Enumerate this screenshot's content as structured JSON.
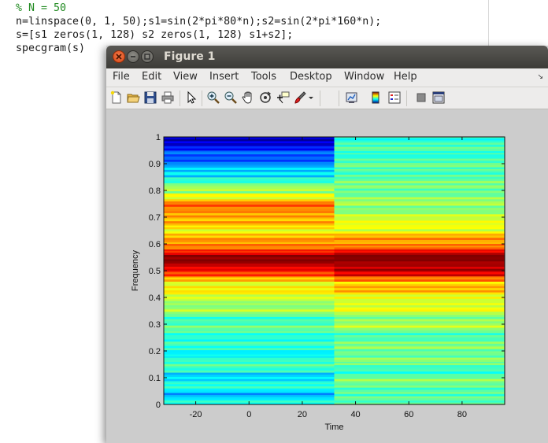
{
  "editor": {
    "lines": [
      "% N = 50",
      "n=linspace(0, 1, 50);s1=sin(2*pi*80*n);s2=sin(2*pi*160*n);",
      "s=[s1 zeros(1, 128) s2 zeros(1, 128) s1+s2];",
      "specgram(s)"
    ],
    "comment_color": "#228b22"
  },
  "window": {
    "title": "Figure 1",
    "controls": [
      "close-icon",
      "minimize-icon",
      "maximize-icon"
    ]
  },
  "menu": {
    "items": [
      "File",
      "Edit",
      "View",
      "Insert",
      "Tools",
      "Desktop",
      "Window",
      "Help"
    ],
    "overflow_icon": "double-chevron-icon"
  },
  "toolbar": {
    "icons": [
      "new-figure-icon",
      "open-file-icon",
      "save-icon",
      "print-icon",
      "edit-plot-arrow-icon",
      "zoom-in-icon",
      "zoom-out-icon",
      "pan-hand-icon",
      "rotate-3d-icon",
      "data-cursor-icon",
      "brush-icon",
      "brush-dropdown-icon",
      "link-plot-icon",
      "colorbar-icon",
      "legend-icon",
      "hide-plot-tools-icon",
      "show-plot-tools-icon"
    ]
  },
  "chart_data": {
    "type": "heatmap",
    "title": "",
    "xlabel": "Time",
    "ylabel": "Frequency",
    "xlim": [
      -32,
      96
    ],
    "ylim": [
      0,
      1
    ],
    "xticks": [
      -20,
      0,
      20,
      40,
      60,
      80
    ],
    "yticks": [
      0,
      0.1,
      0.2,
      0.3,
      0.4,
      0.5,
      0.6,
      0.7,
      0.8,
      0.9,
      1
    ],
    "grid": false,
    "colormap": "jet",
    "time_segments": [
      {
        "x_start": -32,
        "x_end": 32
      },
      {
        "x_start": 32,
        "x_end": 96
      }
    ],
    "frequency_profiles": [
      {
        "segment": 0,
        "bands": [
          {
            "f0": 0.0,
            "f1": 0.02,
            "level": 0.38
          },
          {
            "f0": 0.02,
            "f1": 0.045,
            "level": 0.3
          },
          {
            "f0": 0.045,
            "f1": 0.08,
            "level": 0.4
          },
          {
            "f0": 0.08,
            "f1": 0.12,
            "level": 0.36
          },
          {
            "f0": 0.12,
            "f1": 0.18,
            "level": 0.42
          },
          {
            "f0": 0.18,
            "f1": 0.22,
            "level": 0.38
          },
          {
            "f0": 0.22,
            "f1": 0.28,
            "level": 0.43
          },
          {
            "f0": 0.28,
            "f1": 0.34,
            "level": 0.46
          },
          {
            "f0": 0.34,
            "f1": 0.38,
            "level": 0.52
          },
          {
            "f0": 0.38,
            "f1": 0.42,
            "level": 0.58
          },
          {
            "f0": 0.42,
            "f1": 0.46,
            "level": 0.63
          },
          {
            "f0": 0.46,
            "f1": 0.48,
            "level": 0.7
          },
          {
            "f0": 0.48,
            "f1": 0.5,
            "level": 0.8
          },
          {
            "f0": 0.5,
            "f1": 0.52,
            "level": 0.92
          },
          {
            "f0": 0.52,
            "f1": 0.56,
            "level": 0.98
          },
          {
            "f0": 0.56,
            "f1": 0.58,
            "level": 0.88
          },
          {
            "f0": 0.58,
            "f1": 0.6,
            "level": 0.78
          },
          {
            "f0": 0.6,
            "f1": 0.64,
            "level": 0.7
          },
          {
            "f0": 0.64,
            "f1": 0.67,
            "level": 0.64
          },
          {
            "f0": 0.67,
            "f1": 0.7,
            "level": 0.68
          },
          {
            "f0": 0.7,
            "f1": 0.76,
            "level": 0.75
          },
          {
            "f0": 0.76,
            "f1": 0.79,
            "level": 0.64
          },
          {
            "f0": 0.79,
            "f1": 0.82,
            "level": 0.52
          },
          {
            "f0": 0.82,
            "f1": 0.85,
            "level": 0.44
          },
          {
            "f0": 0.85,
            "f1": 0.87,
            "level": 0.36
          },
          {
            "f0": 0.87,
            "f1": 0.9,
            "level": 0.3
          },
          {
            "f0": 0.9,
            "f1": 0.92,
            "level": 0.24
          },
          {
            "f0": 0.92,
            "f1": 0.95,
            "level": 0.2
          },
          {
            "f0": 0.95,
            "f1": 0.97,
            "level": 0.14
          },
          {
            "f0": 0.97,
            "f1": 0.985,
            "level": 0.1
          },
          {
            "f0": 0.985,
            "f1": 1.0,
            "level": 0.06
          }
        ]
      },
      {
        "segment": 1,
        "bands": [
          {
            "f0": 0.0,
            "f1": 0.04,
            "level": 0.44
          },
          {
            "f0": 0.04,
            "f1": 0.1,
            "level": 0.48
          },
          {
            "f0": 0.1,
            "f1": 0.16,
            "level": 0.45
          },
          {
            "f0": 0.16,
            "f1": 0.22,
            "level": 0.5
          },
          {
            "f0": 0.22,
            "f1": 0.28,
            "level": 0.47
          },
          {
            "f0": 0.28,
            "f1": 0.34,
            "level": 0.53
          },
          {
            "f0": 0.34,
            "f1": 0.38,
            "level": 0.58
          },
          {
            "f0": 0.38,
            "f1": 0.42,
            "level": 0.62
          },
          {
            "f0": 0.42,
            "f1": 0.46,
            "level": 0.68
          },
          {
            "f0": 0.46,
            "f1": 0.48,
            "level": 0.78
          },
          {
            "f0": 0.48,
            "f1": 0.5,
            "level": 0.88
          },
          {
            "f0": 0.5,
            "f1": 0.52,
            "level": 0.96
          },
          {
            "f0": 0.52,
            "f1": 0.56,
            "level": 1.0
          },
          {
            "f0": 0.56,
            "f1": 0.58,
            "level": 0.9
          },
          {
            "f0": 0.58,
            "f1": 0.6,
            "level": 0.8
          },
          {
            "f0": 0.6,
            "f1": 0.64,
            "level": 0.7
          },
          {
            "f0": 0.64,
            "f1": 0.68,
            "level": 0.62
          },
          {
            "f0": 0.68,
            "f1": 0.72,
            "level": 0.56
          },
          {
            "f0": 0.72,
            "f1": 0.76,
            "level": 0.52
          },
          {
            "f0": 0.76,
            "f1": 0.82,
            "level": 0.5
          },
          {
            "f0": 0.82,
            "f1": 0.88,
            "level": 0.47
          },
          {
            "f0": 0.88,
            "f1": 0.94,
            "level": 0.45
          },
          {
            "f0": 0.94,
            "f1": 1.0,
            "level": 0.43
          }
        ]
      }
    ]
  }
}
